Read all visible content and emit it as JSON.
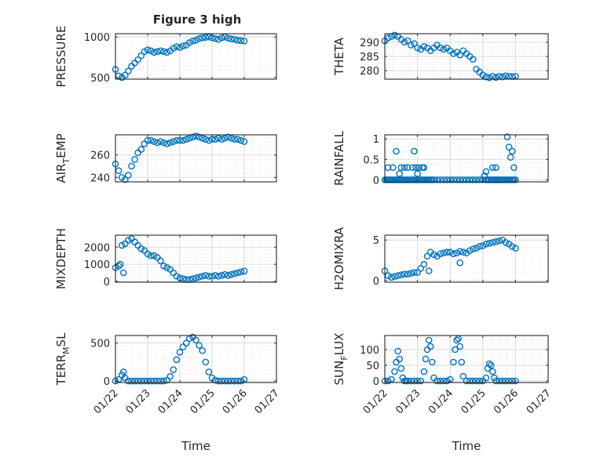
{
  "figure": {
    "title": "Figure 3 high"
  },
  "chart_data": [
    {
      "type": "scatter",
      "ylabel": "PRESSURE",
      "xlabel": "",
      "title": "Figure 3 high",
      "ylim": [
        480,
        1040
      ],
      "yticks": [
        500,
        1000
      ],
      "ytick_labels": [
        "500",
        "1000"
      ],
      "xlim": [
        0,
        5
      ],
      "grid": true,
      "marker_color": "#0072BD",
      "x": [
        0.0,
        0.1,
        0.2,
        0.3,
        0.4,
        0.5,
        0.6,
        0.7,
        0.8,
        0.9,
        1.0,
        1.1,
        1.2,
        1.3,
        1.4,
        1.5,
        1.6,
        1.7,
        1.8,
        1.9,
        2.0,
        2.1,
        2.2,
        2.3,
        2.4,
        2.5,
        2.6,
        2.7,
        2.8,
        2.9,
        3.0,
        3.1,
        3.2,
        3.3,
        3.4,
        3.5,
        3.6,
        3.7,
        3.8,
        3.9,
        4.0
      ],
      "y": [
        600,
        520,
        500,
        530,
        580,
        640,
        680,
        720,
        770,
        820,
        840,
        830,
        810,
        820,
        830,
        820,
        810,
        830,
        860,
        880,
        870,
        890,
        900,
        930,
        950,
        960,
        980,
        990,
        995,
        1000,
        990,
        980,
        970,
        990,
        1000,
        985,
        975,
        970,
        960,
        955,
        950
      ]
    },
    {
      "type": "scatter",
      "ylabel": "THETA",
      "xlabel": "",
      "ylim": [
        277,
        293
      ],
      "yticks": [
        280,
        285,
        290
      ],
      "ytick_labels": [
        "280",
        "285",
        "290"
      ],
      "xlim": [
        0,
        5
      ],
      "grid": true,
      "marker_color": "#0072BD",
      "x": [
        0.0,
        0.1,
        0.2,
        0.3,
        0.4,
        0.5,
        0.6,
        0.7,
        0.8,
        0.9,
        1.0,
        1.1,
        1.2,
        1.3,
        1.4,
        1.5,
        1.6,
        1.7,
        1.8,
        1.9,
        2.0,
        2.1,
        2.2,
        2.3,
        2.4,
        2.5,
        2.6,
        2.7,
        2.8,
        2.9,
        3.0,
        3.1,
        3.2,
        3.3,
        3.4,
        3.5,
        3.6,
        3.7,
        3.8,
        3.9,
        4.0
      ],
      "y": [
        290.5,
        291.5,
        292.0,
        292.5,
        292.0,
        291.0,
        290.0,
        290.5,
        289.0,
        289.5,
        288.0,
        287.5,
        288.5,
        288.0,
        287.0,
        288.0,
        289.0,
        288.0,
        287.5,
        288.0,
        287.0,
        286.0,
        286.5,
        285.5,
        287.0,
        286.0,
        285.0,
        284.0,
        280.5,
        279.5,
        278.5,
        277.8,
        277.5,
        278.0,
        277.6,
        278.0,
        277.8,
        278.2,
        278.0,
        277.9,
        278.0
      ]
    },
    {
      "type": "scatter",
      "ylabel": "AIR_TEMP",
      "xlabel": "",
      "ylim": [
        236,
        278
      ],
      "yticks": [
        240,
        260
      ],
      "ytick_labels": [
        "240",
        "260"
      ],
      "xlim": [
        0,
        5
      ],
      "grid": true,
      "marker_color": "#0072BD",
      "x": [
        0.0,
        0.1,
        0.2,
        0.3,
        0.4,
        0.5,
        0.6,
        0.7,
        0.8,
        0.9,
        1.0,
        1.1,
        1.2,
        1.3,
        1.4,
        1.5,
        1.6,
        1.7,
        1.8,
        1.9,
        2.0,
        2.1,
        2.2,
        2.3,
        2.4,
        2.5,
        2.6,
        2.7,
        2.8,
        2.9,
        3.0,
        3.1,
        3.2,
        3.3,
        3.4,
        3.5,
        3.6,
        3.7,
        3.8,
        3.9,
        4.0
      ],
      "y": [
        252,
        246,
        240,
        238,
        242,
        250,
        256,
        262,
        265,
        270,
        273,
        273,
        272,
        271,
        272,
        271,
        270,
        271,
        272,
        273,
        273,
        273,
        274,
        275,
        276,
        277,
        276,
        275,
        274,
        273,
        274,
        274,
        275,
        274,
        275,
        276,
        275,
        274,
        274,
        273,
        272
      ]
    },
    {
      "type": "scatter",
      "ylabel": "RAINFALL",
      "xlabel": "",
      "ylim": [
        -0.05,
        1.1
      ],
      "yticks": [
        0,
        0.5,
        1
      ],
      "ytick_labels": [
        "0",
        "0.5",
        "1"
      ],
      "xlim": [
        0,
        5
      ],
      "grid": true,
      "marker_color": "#0072BD",
      "x": [
        0.0,
        0.05,
        0.1,
        0.15,
        0.2,
        0.25,
        0.3,
        0.35,
        0.4,
        0.45,
        0.5,
        0.55,
        0.6,
        0.65,
        0.7,
        0.75,
        0.8,
        0.85,
        0.9,
        0.95,
        1.0,
        1.05,
        1.1,
        1.15,
        1.2,
        1.25,
        1.3,
        1.35,
        1.4,
        1.45,
        1.5,
        1.6,
        1.7,
        1.8,
        1.9,
        2.0,
        2.1,
        2.2,
        2.3,
        2.4,
        2.5,
        2.6,
        2.7,
        2.8,
        2.9,
        3.0,
        3.1,
        3.15,
        3.2,
        3.25,
        3.3,
        3.35,
        3.4,
        3.45,
        3.5,
        3.55,
        3.6,
        3.65,
        3.7,
        3.75,
        3.8,
        3.85,
        3.9,
        3.95,
        4.0,
        0.1,
        0.25,
        0.5,
        0.6,
        0.7,
        0.85,
        0.95,
        1.05,
        1.15,
        1.2,
        0.35,
        0.9,
        3.05,
        3.1,
        3.3,
        3.4,
        3.75,
        3.8,
        3.85,
        3.9,
        3.95,
        1.0,
        0.45
      ],
      "y": [
        0,
        0,
        0,
        0,
        0,
        0,
        0,
        0,
        0,
        0,
        0,
        0,
        0,
        0,
        0,
        0,
        0,
        0,
        0,
        0,
        0,
        0,
        0,
        0,
        0,
        0,
        0,
        0,
        0,
        0,
        0,
        0,
        0,
        0,
        0,
        0,
        0,
        0,
        0,
        0,
        0,
        0,
        0,
        0,
        0,
        0,
        0,
        0,
        0,
        0,
        0,
        0,
        0,
        0,
        0,
        0,
        0,
        0,
        0,
        0,
        0,
        0,
        0,
        0,
        0,
        0.3,
        0.3,
        0.3,
        0.3,
        0.3,
        0.3,
        0.3,
        0.3,
        0.3,
        0.3,
        0.7,
        0.7,
        0.1,
        0.2,
        0.3,
        0.3,
        1.05,
        0.8,
        0.55,
        0.7,
        0.3,
        0.15,
        0.15
      ]
    },
    {
      "type": "scatter",
      "ylabel": "MIXDEPTH",
      "xlabel": "",
      "ylim": [
        -50,
        2700
      ],
      "yticks": [
        0,
        1000,
        2000
      ],
      "ytick_labels": [
        "0",
        "1000",
        "2000"
      ],
      "xlim": [
        0,
        5
      ],
      "grid": true,
      "marker_color": "#0072BD",
      "x": [
        0.0,
        0.1,
        0.2,
        0.25,
        0.3,
        0.4,
        0.5,
        0.6,
        0.7,
        0.8,
        0.9,
        1.0,
        1.1,
        1.2,
        1.3,
        1.4,
        1.5,
        1.6,
        1.7,
        1.8,
        1.9,
        2.0,
        2.1,
        2.2,
        2.3,
        2.4,
        2.5,
        2.6,
        2.7,
        2.8,
        2.9,
        3.0,
        3.1,
        3.2,
        3.3,
        3.4,
        3.5,
        3.6,
        3.7,
        3.8,
        3.9,
        4.0,
        0.15
      ],
      "y": [
        800,
        900,
        2100,
        500,
        2200,
        2400,
        2500,
        2300,
        2100,
        1900,
        1800,
        1600,
        1500,
        1500,
        1400,
        1200,
        900,
        800,
        700,
        500,
        300,
        200,
        150,
        100,
        100,
        150,
        200,
        250,
        300,
        350,
        300,
        300,
        350,
        300,
        350,
        400,
        350,
        400,
        450,
        500,
        550,
        600,
        1000
      ]
    },
    {
      "type": "scatter",
      "ylabel": "H2OMIXRA",
      "xlabel": "",
      "ylim": [
        -0.2,
        5.6
      ],
      "yticks": [
        0,
        5
      ],
      "ytick_labels": [
        "0",
        "5"
      ],
      "xlim": [
        0,
        5
      ],
      "grid": true,
      "marker_color": "#0072BD",
      "x": [
        0.0,
        0.1,
        0.2,
        0.3,
        0.4,
        0.5,
        0.6,
        0.7,
        0.8,
        0.9,
        1.0,
        1.1,
        1.2,
        1.3,
        1.4,
        1.5,
        1.6,
        1.7,
        1.8,
        1.9,
        2.0,
        2.1,
        2.2,
        2.3,
        2.4,
        2.5,
        2.6,
        2.7,
        2.8,
        2.9,
        3.0,
        3.1,
        3.2,
        3.3,
        3.4,
        3.5,
        3.6,
        3.7,
        3.8,
        3.9,
        4.0,
        1.35,
        2.3
      ],
      "y": [
        1.2,
        0.6,
        0.4,
        0.5,
        0.6,
        0.7,
        0.8,
        0.8,
        0.9,
        1.0,
        1.0,
        1.5,
        2.0,
        3.0,
        3.5,
        3.2,
        3.0,
        3.3,
        3.4,
        3.5,
        3.5,
        3.3,
        3.4,
        3.6,
        3.5,
        3.4,
        3.7,
        3.9,
        4.0,
        4.2,
        4.3,
        4.5,
        4.6,
        4.7,
        4.8,
        4.9,
        5.0,
        4.7,
        4.5,
        4.2,
        4.0,
        1.2,
        2.2
      ]
    },
    {
      "type": "scatter",
      "ylabel": "TERR_MSL",
      "xlabel": "Time",
      "ylim": [
        -20,
        600
      ],
      "yticks": [
        0,
        500
      ],
      "ytick_labels": [
        "0",
        "500"
      ],
      "xlim": [
        0,
        5
      ],
      "xticks": [
        0,
        1,
        2,
        3,
        4,
        5
      ],
      "xtick_labels": [
        "01/22",
        "01/23",
        "01/24",
        "01/25",
        "01/26",
        "01/27"
      ],
      "grid": true,
      "marker_color": "#0072BD",
      "x": [
        0.0,
        0.1,
        0.2,
        0.25,
        0.3,
        0.4,
        0.5,
        0.6,
        0.7,
        0.8,
        0.9,
        1.0,
        1.1,
        1.2,
        1.3,
        1.4,
        1.5,
        1.6,
        1.7,
        1.8,
        1.9,
        2.0,
        2.1,
        2.2,
        2.3,
        2.4,
        2.5,
        2.6,
        2.7,
        2.8,
        2.9,
        3.0,
        3.1,
        3.2,
        3.3,
        3.4,
        3.5,
        3.6,
        3.7,
        3.8,
        3.9,
        4.0
      ],
      "y": [
        0,
        20,
        80,
        120,
        40,
        0,
        0,
        0,
        0,
        0,
        0,
        0,
        0,
        0,
        0,
        0,
        0,
        10,
        60,
        150,
        280,
        380,
        450,
        500,
        560,
        580,
        540,
        470,
        400,
        250,
        120,
        40,
        10,
        0,
        0,
        0,
        0,
        0,
        0,
        0,
        0,
        20
      ]
    },
    {
      "type": "scatter",
      "ylabel": "SUN_FLUX",
      "xlabel": "Time",
      "ylim": [
        -5,
        145
      ],
      "yticks": [
        0,
        50,
        100
      ],
      "ytick_labels": [
        "0",
        "50",
        "100"
      ],
      "xlim": [
        0,
        5
      ],
      "xticks": [
        0,
        1,
        2,
        3,
        4,
        5
      ],
      "xtick_labels": [
        "01/22",
        "01/23",
        "01/24",
        "01/25",
        "01/26",
        "01/27"
      ],
      "grid": true,
      "marker_color": "#0072BD",
      "x": [
        0.0,
        0.1,
        0.2,
        0.3,
        0.35,
        0.4,
        0.45,
        0.5,
        0.55,
        0.6,
        0.65,
        0.7,
        0.8,
        0.9,
        1.0,
        1.1,
        1.2,
        1.25,
        1.3,
        1.35,
        1.4,
        1.45,
        1.5,
        1.6,
        1.7,
        1.8,
        1.9,
        2.0,
        2.1,
        2.15,
        2.2,
        2.25,
        2.3,
        2.35,
        2.4,
        2.5,
        2.6,
        2.7,
        2.8,
        2.9,
        3.0,
        3.1,
        3.15,
        3.2,
        3.25,
        3.3,
        3.35,
        3.4,
        3.5,
        3.6,
        3.7,
        3.8,
        3.9,
        4.0
      ],
      "y": [
        0,
        0,
        5,
        30,
        60,
        95,
        70,
        40,
        10,
        0,
        0,
        0,
        0,
        0,
        0,
        0,
        30,
        70,
        100,
        130,
        110,
        60,
        10,
        0,
        0,
        0,
        0,
        5,
        60,
        100,
        130,
        135,
        110,
        60,
        15,
        0,
        0,
        0,
        0,
        0,
        0,
        10,
        40,
        55,
        50,
        30,
        10,
        0,
        0,
        0,
        0,
        0,
        0,
        0
      ]
    }
  ]
}
